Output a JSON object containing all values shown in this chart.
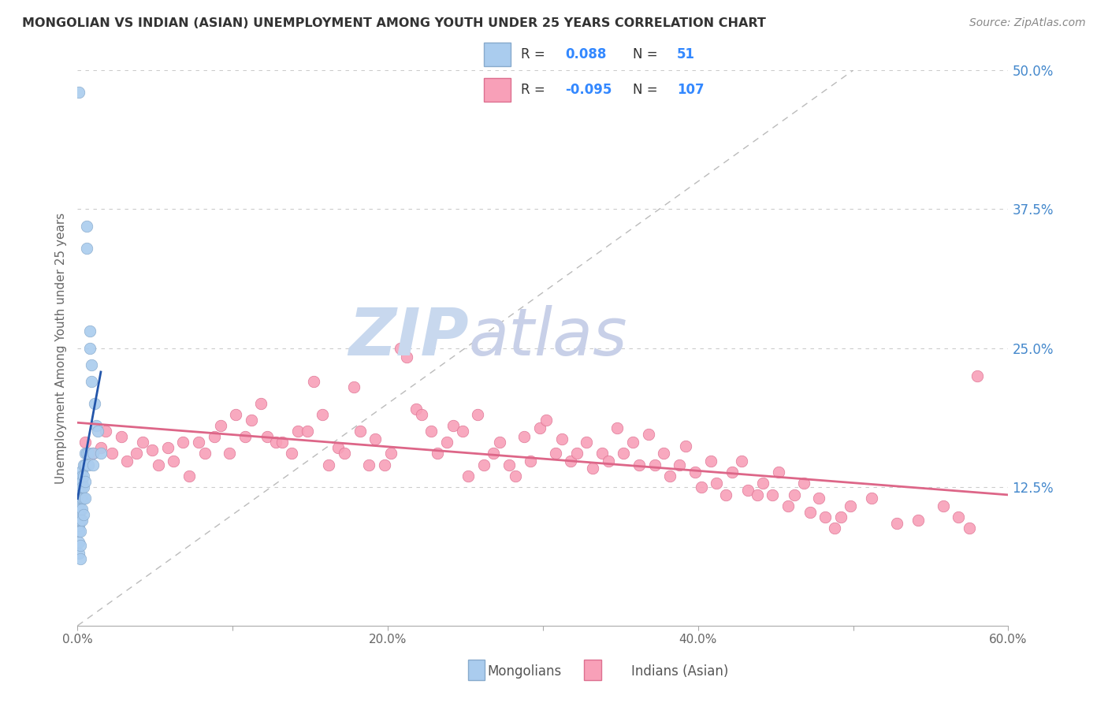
{
  "title": "MONGOLIAN VS INDIAN (ASIAN) UNEMPLOYMENT AMONG YOUTH UNDER 25 YEARS CORRELATION CHART",
  "source": "Source: ZipAtlas.com",
  "ylabel": "Unemployment Among Youth under 25 years",
  "xlim": [
    0.0,
    0.6
  ],
  "ylim": [
    0.0,
    0.5
  ],
  "xticks": [
    0.0,
    0.1,
    0.2,
    0.3,
    0.4,
    0.5,
    0.6
  ],
  "xticklabels": [
    "0.0%",
    "",
    "20.0%",
    "",
    "40.0%",
    "",
    "60.0%"
  ],
  "yticks_right": [
    0.125,
    0.25,
    0.375,
    0.5
  ],
  "ytick_labels_right": [
    "12.5%",
    "25.0%",
    "37.5%",
    "50.0%"
  ],
  "mongolian_R": 0.088,
  "mongolian_N": 51,
  "indian_R": -0.095,
  "indian_N": 107,
  "mongolian_color": "#aaccee",
  "mongolian_edge": "#88aacc",
  "indian_color": "#f8a0b8",
  "indian_edge": "#dd7090",
  "mongolian_trend_color": "#2255aa",
  "indian_trend_color": "#dd6688",
  "diagonal_color": "#bbbbbb",
  "watermark_zip_color": "#c8d8ee",
  "watermark_atlas_color": "#c8d0e8",
  "mongolian_x": [
    0.001,
    0.001,
    0.001,
    0.001,
    0.001,
    0.001,
    0.001,
    0.001,
    0.001,
    0.001,
    0.002,
    0.002,
    0.002,
    0.002,
    0.002,
    0.002,
    0.002,
    0.002,
    0.002,
    0.002,
    0.003,
    0.003,
    0.003,
    0.003,
    0.003,
    0.003,
    0.003,
    0.004,
    0.004,
    0.004,
    0.004,
    0.004,
    0.005,
    0.005,
    0.005,
    0.005,
    0.006,
    0.006,
    0.006,
    0.007,
    0.007,
    0.008,
    0.008,
    0.009,
    0.009,
    0.01,
    0.01,
    0.011,
    0.012,
    0.013,
    0.015
  ],
  "mongolian_y": [
    0.48,
    0.13,
    0.125,
    0.12,
    0.11,
    0.1,
    0.09,
    0.085,
    0.075,
    0.065,
    0.135,
    0.13,
    0.125,
    0.12,
    0.115,
    0.105,
    0.095,
    0.085,
    0.072,
    0.06,
    0.14,
    0.135,
    0.13,
    0.125,
    0.115,
    0.105,
    0.095,
    0.145,
    0.135,
    0.125,
    0.115,
    0.1,
    0.155,
    0.145,
    0.13,
    0.115,
    0.36,
    0.34,
    0.155,
    0.155,
    0.145,
    0.265,
    0.25,
    0.235,
    0.22,
    0.155,
    0.145,
    0.2,
    0.18,
    0.175,
    0.155
  ],
  "indian_x": [
    0.005,
    0.01,
    0.015,
    0.018,
    0.022,
    0.028,
    0.032,
    0.038,
    0.042,
    0.048,
    0.052,
    0.058,
    0.062,
    0.068,
    0.072,
    0.078,
    0.082,
    0.088,
    0.092,
    0.098,
    0.102,
    0.108,
    0.112,
    0.118,
    0.122,
    0.128,
    0.132,
    0.138,
    0.142,
    0.148,
    0.152,
    0.158,
    0.162,
    0.168,
    0.172,
    0.178,
    0.182,
    0.188,
    0.192,
    0.198,
    0.202,
    0.208,
    0.212,
    0.218,
    0.222,
    0.228,
    0.232,
    0.238,
    0.242,
    0.248,
    0.252,
    0.258,
    0.262,
    0.268,
    0.272,
    0.278,
    0.282,
    0.288,
    0.292,
    0.298,
    0.302,
    0.308,
    0.312,
    0.318,
    0.322,
    0.328,
    0.332,
    0.338,
    0.342,
    0.348,
    0.352,
    0.358,
    0.362,
    0.368,
    0.372,
    0.378,
    0.382,
    0.388,
    0.392,
    0.398,
    0.402,
    0.408,
    0.412,
    0.418,
    0.422,
    0.428,
    0.432,
    0.438,
    0.442,
    0.448,
    0.452,
    0.458,
    0.462,
    0.468,
    0.472,
    0.478,
    0.482,
    0.488,
    0.492,
    0.498,
    0.512,
    0.528,
    0.542,
    0.558,
    0.575,
    0.568,
    0.58
  ],
  "indian_y": [
    0.165,
    0.155,
    0.16,
    0.175,
    0.155,
    0.17,
    0.148,
    0.155,
    0.165,
    0.158,
    0.145,
    0.16,
    0.148,
    0.165,
    0.135,
    0.165,
    0.155,
    0.17,
    0.18,
    0.155,
    0.19,
    0.17,
    0.185,
    0.2,
    0.17,
    0.165,
    0.165,
    0.155,
    0.175,
    0.175,
    0.22,
    0.19,
    0.145,
    0.16,
    0.155,
    0.215,
    0.175,
    0.145,
    0.168,
    0.145,
    0.155,
    0.25,
    0.242,
    0.195,
    0.19,
    0.175,
    0.155,
    0.165,
    0.18,
    0.175,
    0.135,
    0.19,
    0.145,
    0.155,
    0.165,
    0.145,
    0.135,
    0.17,
    0.148,
    0.178,
    0.185,
    0.155,
    0.168,
    0.148,
    0.155,
    0.165,
    0.142,
    0.155,
    0.148,
    0.178,
    0.155,
    0.165,
    0.145,
    0.172,
    0.145,
    0.155,
    0.135,
    0.145,
    0.162,
    0.138,
    0.125,
    0.148,
    0.128,
    0.118,
    0.138,
    0.148,
    0.122,
    0.118,
    0.128,
    0.118,
    0.138,
    0.108,
    0.118,
    0.128,
    0.102,
    0.115,
    0.098,
    0.088,
    0.098,
    0.108,
    0.115,
    0.092,
    0.095,
    0.108,
    0.088,
    0.098,
    0.225
  ]
}
